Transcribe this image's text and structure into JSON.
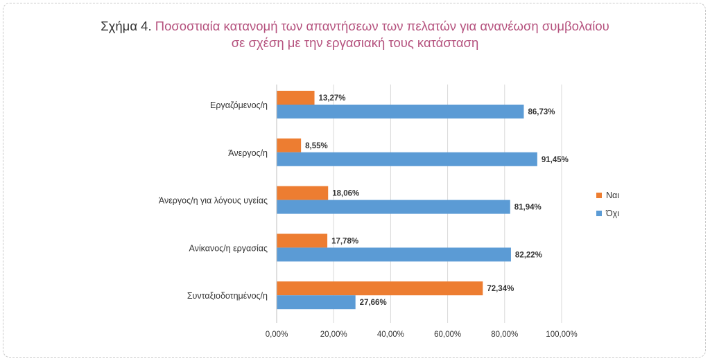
{
  "figure": {
    "prefix": "Σχήμα 4.",
    "title_line1": "Ποσοστιαία κατανομή των απαντήσεων των πελατών για ανανέωση συμβολαίου",
    "title_line2": "σε σχέση με την εργασιακή τους κατάσταση"
  },
  "chart_data": {
    "type": "bar",
    "orientation": "horizontal",
    "categories": [
      "Εργαζόμενος/η",
      "Άνεργος/η",
      "Άνεργος/η για λόγους υγείας",
      "Ανίκανος/η εργασίας",
      "Συνταξιοδοτημένος/η"
    ],
    "series": [
      {
        "name": "Ναι",
        "color": "#ed7d31",
        "values": [
          13.27,
          8.55,
          18.06,
          17.78,
          72.34
        ],
        "labels": [
          "13,27%",
          "8,55%",
          "18,06%",
          "17,78%",
          "72,34%"
        ]
      },
      {
        "name": "Όχι",
        "color": "#5b9bd5",
        "values": [
          86.73,
          91.45,
          81.94,
          82.22,
          27.66
        ],
        "labels": [
          "86,73%",
          "91,45%",
          "81,94%",
          "82,22%",
          "27,66%"
        ]
      }
    ],
    "xlim": [
      0,
      100
    ],
    "xticks": [
      "0,00%",
      "20,00%",
      "40,00%",
      "60,00%",
      "80,00%",
      "100,00%"
    ],
    "grid": true,
    "legend_position": "right"
  }
}
